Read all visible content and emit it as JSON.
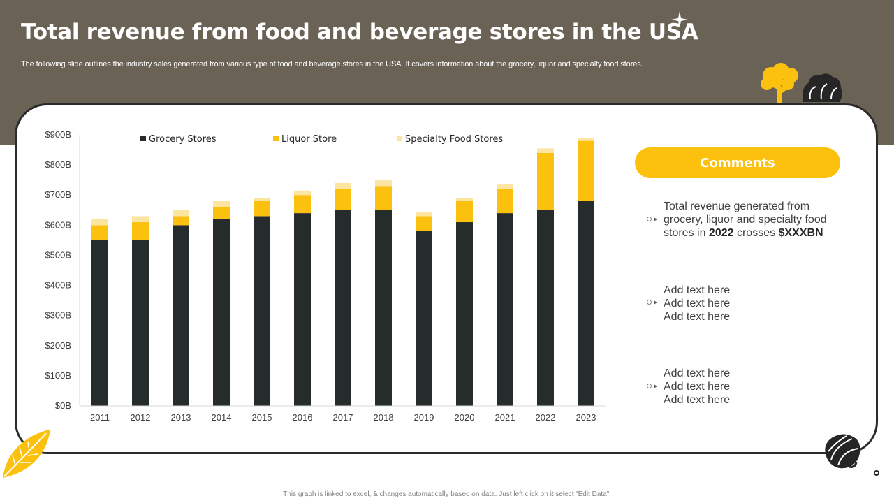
{
  "slide": {
    "title": "Total revenue from food and beverage stores in the USA",
    "subtitle": "The following slide outlines the industry sales generated from various type of food and beverage stores in the USA.  It covers information about the grocery,  liquor and specialty food stores.",
    "footer_note": "This graph is linked to excel, & changes automatically  based on data.  Just left click on it select “Edit Data”."
  },
  "comments": {
    "title": "Comments",
    "items": [
      {
        "line1": "Total revenue generated from",
        "line2": "grocery, liquor and specialty food",
        "line3_prefix": "stores in ",
        "line3_year": "2022",
        "line3_mid": " crosses ",
        "line3_value": "$XXXBN"
      },
      {
        "lines": [
          "Add text here",
          "Add text here",
          "Add text here"
        ]
      },
      {
        "lines": [
          "Add text here",
          "Add text here",
          "Add text here"
        ]
      }
    ]
  },
  "decorations": {
    "sparkle": "sparkle-icon",
    "tree": "tree-icon",
    "lettuce": "lettuce-icon",
    "leaf": "leaf-icon",
    "nut": "nut-icon"
  },
  "chart_data": {
    "type": "bar",
    "stacked": true,
    "categories": [
      "2011",
      "2012",
      "2013",
      "2014",
      "2015",
      "2016",
      "2017",
      "2018",
      "2019",
      "2020",
      "2021",
      "2022",
      "2023"
    ],
    "series": [
      {
        "name": "Grocery Stores",
        "color": "#262b2b",
        "values": [
          550,
          550,
          600,
          620,
          630,
          640,
          650,
          650,
          580,
          610,
          640,
          650,
          680
        ]
      },
      {
        "name": "Liquor Store",
        "color": "#fcc10e",
        "values": [
          50,
          60,
          30,
          40,
          50,
          60,
          70,
          80,
          50,
          70,
          80,
          190,
          200
        ]
      },
      {
        "name": "Specialty Food Stores",
        "color": "#fce5a0",
        "values": [
          20,
          20,
          20,
          20,
          10,
          15,
          20,
          20,
          15,
          10,
          15,
          15,
          10
        ]
      }
    ],
    "y_tick_labels": [
      "$0B",
      "$100B",
      "$200B",
      "$300B",
      "$400B",
      "$500B",
      "$600B",
      "$700B",
      "$800B",
      "$900B"
    ],
    "ylim": [
      0,
      900
    ],
    "grid": false,
    "legend_position": "top"
  }
}
